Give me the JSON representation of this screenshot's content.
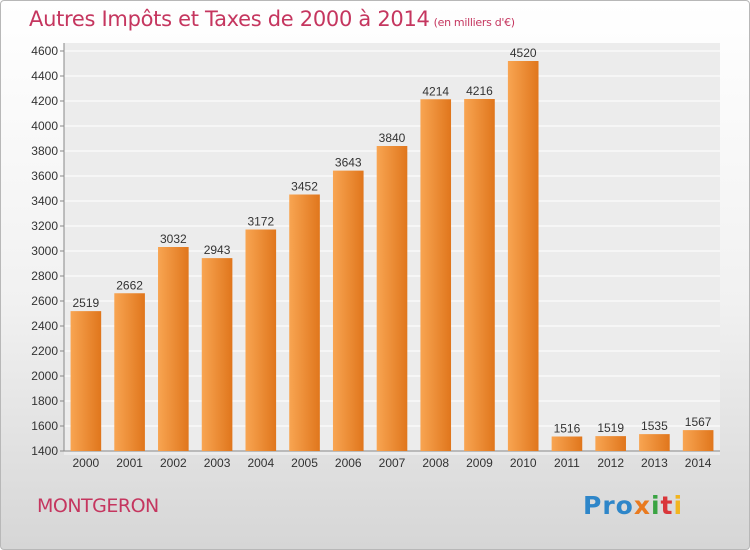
{
  "title": "Autres Impôts et Taxes de 2000 à 2014",
  "title_unit": "(en milliers d'€)",
  "city": "MONTGERON",
  "logo": {
    "p1": "Pro",
    "p2": "x",
    "p3": "i",
    "p4": "t",
    "p5": "i"
  },
  "colors": {
    "bar_light": "#f8a552",
    "bar_dark": "#e0761c",
    "title": "#c5365f"
  },
  "chart_data": {
    "type": "bar",
    "categories": [
      "2000",
      "2001",
      "2002",
      "2003",
      "2004",
      "2005",
      "2006",
      "2007",
      "2008",
      "2009",
      "2010",
      "2011",
      "2012",
      "2013",
      "2014"
    ],
    "values": [
      2519,
      2662,
      3032,
      2943,
      3172,
      3452,
      3643,
      3840,
      4214,
      4216,
      4520,
      1516,
      1519,
      1535,
      1567
    ],
    "ylim": [
      1400,
      4600
    ],
    "yticks": [
      1400,
      1600,
      1800,
      2000,
      2200,
      2400,
      2600,
      2800,
      3000,
      3200,
      3400,
      3600,
      3800,
      4000,
      4200,
      4400,
      4600
    ],
    "grid": true
  }
}
